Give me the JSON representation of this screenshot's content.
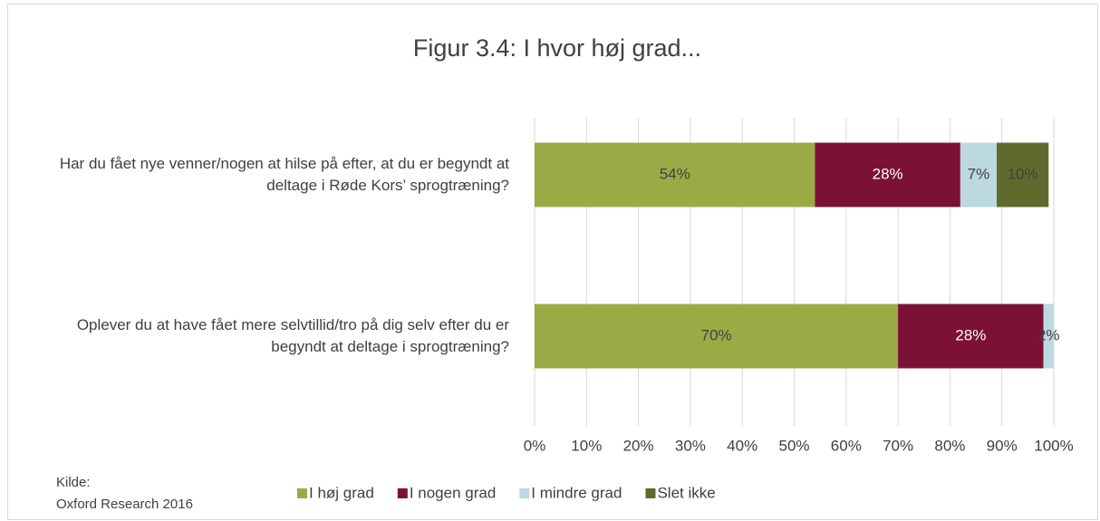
{
  "chart_data": {
    "type": "stacked_bar_horizontal",
    "title": "Figur 3.4: I hvor høj grad...",
    "categories": [
      "Har du fået nye venner/nogen at hilse på efter, at du er begyndt at deltage i Røde Kors’ sprogtræning?",
      "Oplever du at have fået mere selvtillid/tro på dig selv efter du er begyndt at deltage i sprogtræning?"
    ],
    "series": [
      {
        "name": "I høj grad",
        "color": "#9aab46",
        "values": [
          54,
          70
        ],
        "value_labels": [
          "54%",
          "70%"
        ]
      },
      {
        "name": "I nogen grad",
        "color": "#7b1134",
        "values": [
          28,
          28
        ],
        "value_labels": [
          "28%",
          "28%"
        ]
      },
      {
        "name": "I mindre grad",
        "color": "#bcd8e0",
        "values": [
          7,
          2
        ],
        "value_labels": [
          "7%",
          "2%"
        ]
      },
      {
        "name": "Slet ikke",
        "color": "#5f6b2d",
        "values": [
          10,
          null
        ],
        "value_labels": [
          "10%",
          null
        ]
      }
    ],
    "xlim": [
      0,
      100
    ],
    "xticks": [
      {
        "value": 0,
        "label": "0%"
      },
      {
        "value": 10,
        "label": "10%"
      },
      {
        "value": 20,
        "label": "20%"
      },
      {
        "value": 30,
        "label": "30%"
      },
      {
        "value": 40,
        "label": "40%"
      },
      {
        "value": 50,
        "label": "50%"
      },
      {
        "value": 60,
        "label": "60%"
      },
      {
        "value": 70,
        "label": "70%"
      },
      {
        "value": 80,
        "label": "80%"
      },
      {
        "value": 90,
        "label": "90%"
      },
      {
        "value": 100,
        "label": "100%"
      }
    ],
    "grid": true,
    "legend": "bottom",
    "source_label": "Kilde:",
    "source": "Oxford Research 2016"
  }
}
